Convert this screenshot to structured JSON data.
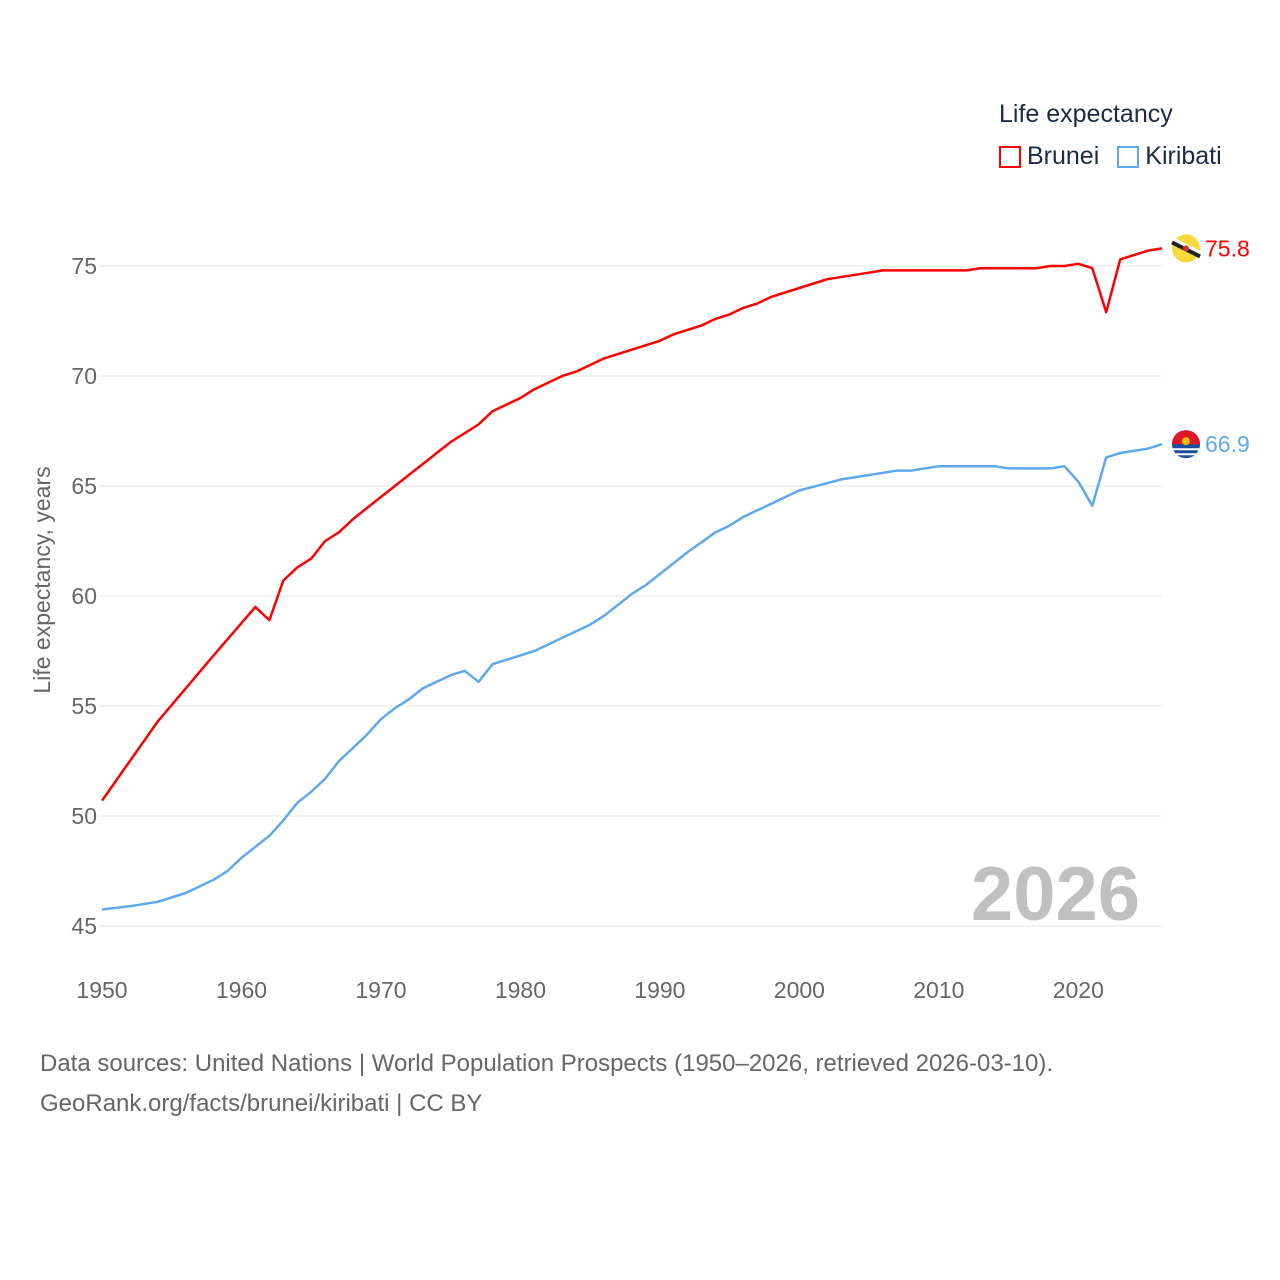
{
  "chart_data": {
    "type": "line",
    "title": "Life expectancy",
    "xlabel": "",
    "ylabel": "Life expectancy, years",
    "xlim": [
      1950,
      2026
    ],
    "ylim": [
      45,
      76.5
    ],
    "x_ticks": [
      "1950",
      "1960",
      "1970",
      "1980",
      "1990",
      "2000",
      "2010",
      "2020"
    ],
    "y_ticks": [
      "45",
      "50",
      "55",
      "60",
      "65",
      "70",
      "75"
    ],
    "grid": true,
    "legend_position": "top-right",
    "year_label": "2026",
    "series": [
      {
        "name": "Brunei",
        "color": "#ff0000",
        "end_label": "75.8",
        "points": [
          [
            1950,
            50.7
          ],
          [
            1954,
            54.3
          ],
          [
            1956,
            55.8
          ],
          [
            1958,
            57.3
          ],
          [
            1961,
            59.5
          ],
          [
            1962,
            58.9
          ],
          [
            1963,
            60.7
          ],
          [
            1964,
            61.3
          ],
          [
            1965,
            61.7
          ],
          [
            1966,
            62.5
          ],
          [
            1967,
            62.9
          ],
          [
            1968,
            63.5
          ],
          [
            1970,
            64.5
          ],
          [
            1971,
            65.0
          ],
          [
            1972,
            65.5
          ],
          [
            1973,
            66.0
          ],
          [
            1974,
            66.5
          ],
          [
            1975,
            67.0
          ],
          [
            1977,
            67.8
          ],
          [
            1978,
            68.4
          ],
          [
            1979,
            68.7
          ],
          [
            1980,
            69.0
          ],
          [
            1981,
            69.4
          ],
          [
            1982,
            69.7
          ],
          [
            1983,
            70.0
          ],
          [
            1984,
            70.2
          ],
          [
            1986,
            70.8
          ],
          [
            1988,
            71.2
          ],
          [
            1990,
            71.6
          ],
          [
            1991,
            71.9
          ],
          [
            1993,
            72.3
          ],
          [
            1994,
            72.6
          ],
          [
            1995,
            72.8
          ],
          [
            1996,
            73.1
          ],
          [
            1997,
            73.3
          ],
          [
            1998,
            73.6
          ],
          [
            2000,
            74.0
          ],
          [
            2002,
            74.4
          ],
          [
            2004,
            74.6
          ],
          [
            2006,
            74.8
          ],
          [
            2012,
            74.8
          ],
          [
            2013,
            74.9
          ],
          [
            2017,
            74.9
          ],
          [
            2018,
            75.0
          ],
          [
            2019,
            75.0
          ],
          [
            2020,
            75.1
          ],
          [
            2021,
            74.9
          ],
          [
            2022,
            72.9
          ],
          [
            2023,
            75.3
          ],
          [
            2024,
            75.5
          ],
          [
            2025,
            75.7
          ],
          [
            2026,
            75.8
          ]
        ]
      },
      {
        "name": "Kiribati",
        "color": "#5ea8ee",
        "end_label": "66.9",
        "points": [
          [
            1950,
            45.75
          ],
          [
            1952,
            45.9
          ],
          [
            1954,
            46.1
          ],
          [
            1956,
            46.5
          ],
          [
            1958,
            47.1
          ],
          [
            1959,
            47.5
          ],
          [
            1960,
            48.1
          ],
          [
            1961,
            48.6
          ],
          [
            1962,
            49.1
          ],
          [
            1963,
            49.8
          ],
          [
            1964,
            50.6
          ],
          [
            1965,
            51.1
          ],
          [
            1966,
            51.7
          ],
          [
            1967,
            52.5
          ],
          [
            1968,
            53.1
          ],
          [
            1969,
            53.7
          ],
          [
            1970,
            54.4
          ],
          [
            1971,
            54.9
          ],
          [
            1972,
            55.3
          ],
          [
            1973,
            55.8
          ],
          [
            1974,
            56.1
          ],
          [
            1975,
            56.4
          ],
          [
            1976,
            56.6
          ],
          [
            1977,
            56.1
          ],
          [
            1978,
            56.9
          ],
          [
            1980,
            57.3
          ],
          [
            1981,
            57.5
          ],
          [
            1983,
            58.1
          ],
          [
            1985,
            58.7
          ],
          [
            1986,
            59.1
          ],
          [
            1987,
            59.6
          ],
          [
            1988,
            60.1
          ],
          [
            1989,
            60.5
          ],
          [
            1990,
            61.0
          ],
          [
            1992,
            62.0
          ],
          [
            1994,
            62.9
          ],
          [
            1995,
            63.2
          ],
          [
            1996,
            63.6
          ],
          [
            1998,
            64.2
          ],
          [
            2000,
            64.8
          ],
          [
            2003,
            65.3
          ],
          [
            2007,
            65.7
          ],
          [
            2008,
            65.7
          ],
          [
            2010,
            65.9
          ],
          [
            2014,
            65.9
          ],
          [
            2015,
            65.8
          ],
          [
            2018,
            65.8
          ],
          [
            2019,
            65.9
          ],
          [
            2020,
            65.2
          ],
          [
            2021,
            64.1
          ],
          [
            2022,
            66.3
          ],
          [
            2023,
            66.5
          ],
          [
            2025,
            66.7
          ],
          [
            2026,
            66.9
          ]
        ]
      }
    ]
  },
  "legend": {
    "title": "Life expectancy",
    "items": [
      "Brunei",
      "Kiribati"
    ]
  },
  "footer": {
    "line1": "Data sources: United Nations | World Population Prospects (1950–2026, retrieved 2026-03-10).",
    "line2": "GeoRank.org/facts/brunei/kiribati | CC BY"
  }
}
